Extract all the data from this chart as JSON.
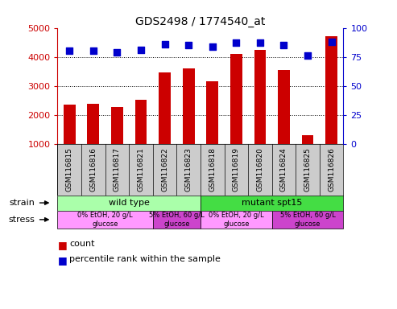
{
  "title": "GDS2498 / 1774540_at",
  "samples": [
    "GSM116815",
    "GSM116816",
    "GSM116817",
    "GSM116821",
    "GSM116822",
    "GSM116823",
    "GSM116818",
    "GSM116819",
    "GSM116820",
    "GSM116824",
    "GSM116825",
    "GSM116826"
  ],
  "counts": [
    2370,
    2400,
    2290,
    2520,
    3470,
    3610,
    3160,
    4090,
    4230,
    3550,
    1300,
    4720
  ],
  "percentile": [
    80,
    80,
    79,
    81,
    86,
    85,
    84,
    87,
    87,
    85,
    76,
    88
  ],
  "ylim_left": [
    1000,
    5000
  ],
  "ylim_right": [
    0,
    100
  ],
  "yticks_left": [
    1000,
    2000,
    3000,
    4000,
    5000
  ],
  "yticks_right": [
    0,
    25,
    50,
    75,
    100
  ],
  "bar_color": "#cc0000",
  "dot_color": "#0000cc",
  "strain_labels": [
    {
      "label": "wild type",
      "start": 0,
      "end": 6,
      "color": "#aaffaa"
    },
    {
      "label": "mutant spt15",
      "start": 6,
      "end": 12,
      "color": "#44dd44"
    }
  ],
  "stress_labels": [
    {
      "label": "0% EtOH, 20 g/L\nglucose",
      "start": 0,
      "end": 4,
      "color": "#ff99ff"
    },
    {
      "label": "5% EtOH, 60 g/L\nglucose",
      "start": 4,
      "end": 6,
      "color": "#cc44cc"
    },
    {
      "label": "0% EtOH, 20 g/L\nglucose",
      "start": 6,
      "end": 9,
      "color": "#ff99ff"
    },
    {
      "label": "5% EtOH, 60 g/L\nglucose",
      "start": 9,
      "end": 12,
      "color": "#cc44cc"
    }
  ],
  "tick_color_left": "#cc0000",
  "tick_color_right": "#0000cc",
  "bg_color": "#ffffff",
  "sample_bg": "#cccccc",
  "grid_color": "#000000",
  "grid_style": ":",
  "bar_width": 0.5
}
